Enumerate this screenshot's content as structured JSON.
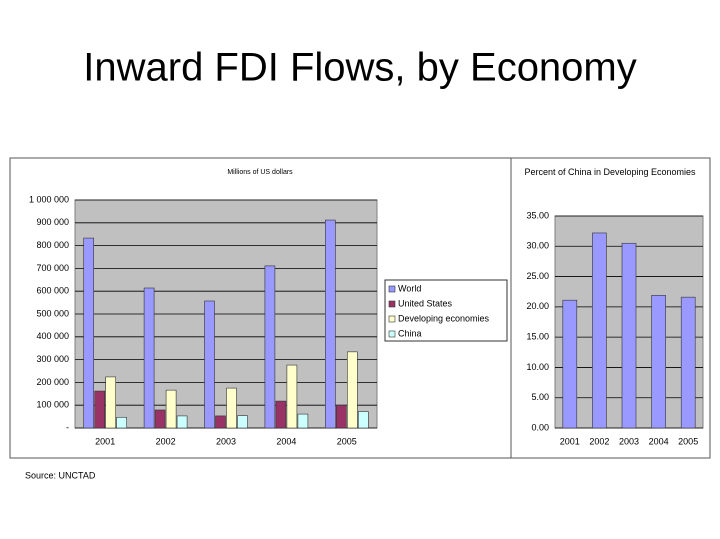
{
  "title": "Inward FDI Flows, by Economy",
  "source": "Source: UNCTAD",
  "chart_data": [
    {
      "type": "bar",
      "title": "Millions of US dollars",
      "categories": [
        "2001",
        "2002",
        "2003",
        "2004",
        "2005"
      ],
      "series": [
        {
          "name": "World",
          "color": "#9999ff",
          "values": [
            833000,
            614000,
            557000,
            711000,
            912000
          ]
        },
        {
          "name": "United States",
          "color": "#993366",
          "values": [
            162000,
            79000,
            53000,
            118000,
            100000
          ]
        },
        {
          "name": "Developing economies",
          "color": "#ffffcc",
          "values": [
            224000,
            166000,
            175000,
            276000,
            334000
          ]
        },
        {
          "name": "China",
          "color": "#ccffff",
          "values": [
            47000,
            53000,
            54000,
            61000,
            72000
          ]
        }
      ],
      "ylim": [
        0,
        1000000
      ],
      "yticks": [
        {
          "value": 0,
          "label": "-"
        },
        {
          "value": 100000,
          "label": "100 000"
        },
        {
          "value": 200000,
          "label": "200 000"
        },
        {
          "value": 300000,
          "label": "300 000"
        },
        {
          "value": 400000,
          "label": "400 000"
        },
        {
          "value": 500000,
          "label": "500 000"
        },
        {
          "value": 600000,
          "label": "600 000"
        },
        {
          "value": 700000,
          "label": "700 000"
        },
        {
          "value": 800000,
          "label": "800 000"
        },
        {
          "value": 900000,
          "label": "900 000"
        },
        {
          "value": 1000000,
          "label": "1 000 000"
        }
      ],
      "grid": true
    },
    {
      "type": "bar",
      "title": "Percent of China in Developing Economies",
      "categories": [
        "2001",
        "2002",
        "2003",
        "2004",
        "2005"
      ],
      "values": [
        21.1,
        32.2,
        30.5,
        21.9,
        21.6
      ],
      "color": "#9999ff",
      "ylim": [
        0,
        35
      ],
      "yticks": [
        {
          "value": 0,
          "label": "0.00"
        },
        {
          "value": 5,
          "label": "5.00"
        },
        {
          "value": 10,
          "label": "10.00"
        },
        {
          "value": 15,
          "label": "15.00"
        },
        {
          "value": 20,
          "label": "20.00"
        },
        {
          "value": 25,
          "label": "25.00"
        },
        {
          "value": 30,
          "label": "30.00"
        },
        {
          "value": 35,
          "label": "35.00"
        }
      ],
      "grid": true
    }
  ]
}
